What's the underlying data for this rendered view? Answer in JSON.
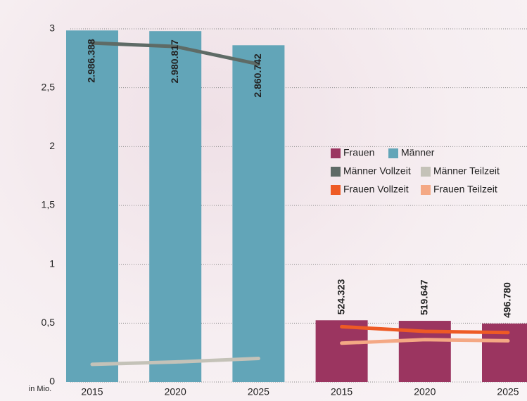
{
  "chart_data": {
    "type": "bar",
    "y_unit": "in Mio.",
    "categories": [
      "2015",
      "2020",
      "2025",
      "2015",
      "2020",
      "2025"
    ],
    "ylim": [
      0,
      3
    ],
    "yticks": [
      0,
      {
        "value": 0.5,
        "label": "0,5"
      },
      1,
      {
        "value": 1.5,
        "label": "1,5"
      },
      2,
      {
        "value": 2.5,
        "label": "2,5"
      },
      3
    ],
    "grid": true,
    "series": [
      {
        "name": "Frauen",
        "kind": "bar",
        "color": "#9b3560",
        "values": [
          null,
          null,
          null,
          0.524323,
          0.519647,
          0.49678
        ],
        "value_labels": [
          null,
          null,
          null,
          "524.323",
          "519.647",
          "496.780"
        ]
      },
      {
        "name": "Männer",
        "kind": "bar",
        "color": "#62a5b8",
        "values": [
          2.986388,
          2.980817,
          2.860742,
          null,
          null,
          null
        ],
        "value_labels": [
          "2.986.388",
          "2.980.817",
          "2.860.742",
          null,
          null,
          null
        ]
      },
      {
        "name": "Männer Vollzeit",
        "kind": "line",
        "color": "#5e6b66",
        "values": [
          2.88,
          2.85,
          2.7,
          null,
          null,
          null
        ]
      },
      {
        "name": "Männer Teilzeit",
        "kind": "line",
        "color": "#c4c2b8",
        "values": [
          0.15,
          0.17,
          0.2,
          null,
          null,
          null
        ]
      },
      {
        "name": "Frauen Vollzeit",
        "kind": "line",
        "color": "#ee5a24",
        "values": [
          null,
          null,
          null,
          0.47,
          0.43,
          0.42
        ]
      },
      {
        "name": "Frauen Teilzeit",
        "kind": "line",
        "color": "#f4a884",
        "values": [
          null,
          null,
          null,
          0.33,
          0.36,
          0.35
        ]
      }
    ]
  }
}
